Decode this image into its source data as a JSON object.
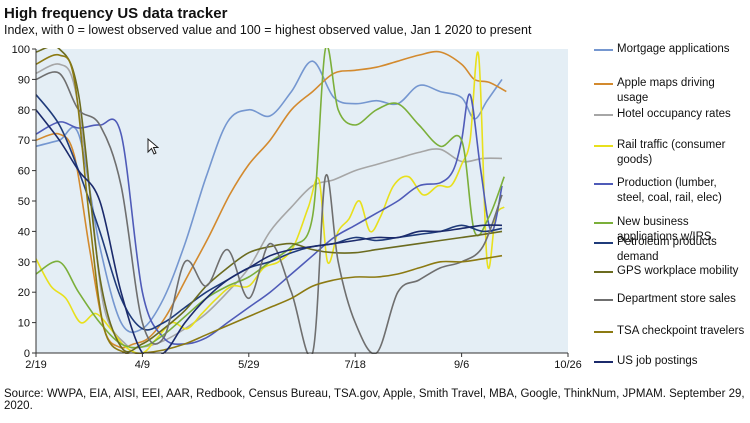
{
  "title": "High frequency US data tracker",
  "subtitle": "Index, with 0 = lowest observed value and 100 = highest observed value, Jan 1 2020 to present",
  "source": "Source:  WWPA, EIA, AISI, EEI, AAR, Redbook, Census Bureau, TSA.gov, Apple, Smith Travel, MBA, Google, ThinkNum,  JPMAM. September 29, 2020.",
  "chart_data": {
    "type": "line",
    "title": "High frequency US data tracker",
    "xlabel": "",
    "ylabel": "",
    "xlim": [
      "2020-02-19",
      "2020-10-26"
    ],
    "ylim": [
      0,
      100
    ],
    "x_ticks": [
      "2/19",
      "4/9",
      "5/29",
      "7/18",
      "9/6",
      "10/26"
    ],
    "x_tick_dates": [
      "2020-02-19",
      "2020-04-09",
      "2020-05-29",
      "2020-07-18",
      "2020-09-06",
      "2020-10-26"
    ],
    "y_ticks": [
      0,
      10,
      20,
      30,
      40,
      50,
      60,
      70,
      80,
      90,
      100
    ],
    "grid": false,
    "legend_position": "right",
    "plot_background": "#E4EEF5",
    "series": [
      {
        "name": "Mortgage applications",
        "color": "#7597D0",
        "x": [
          "2020-02-19",
          "2020-03-01",
          "2020-03-10",
          "2020-03-20",
          "2020-03-30",
          "2020-04-09",
          "2020-04-19",
          "2020-04-29",
          "2020-05-09",
          "2020-05-19",
          "2020-05-29",
          "2020-06-08",
          "2020-06-18",
          "2020-06-28",
          "2020-07-08",
          "2020-07-18",
          "2020-07-28",
          "2020-08-07",
          "2020-08-17",
          "2020-08-27",
          "2020-09-06",
          "2020-09-12",
          "2020-09-18",
          "2020-09-25"
        ],
        "y": [
          68,
          70,
          72,
          35,
          10,
          8,
          18,
          36,
          58,
          76,
          80,
          78,
          86,
          96,
          84,
          82,
          83,
          82,
          88,
          86,
          84,
          77,
          83,
          90
        ]
      },
      {
        "name": "Apple maps driving usage",
        "color": "#D38A2E",
        "x": [
          "2020-02-19",
          "2020-03-01",
          "2020-03-08",
          "2020-03-15",
          "2020-03-22",
          "2020-03-29",
          "2020-04-05",
          "2020-04-12",
          "2020-04-20",
          "2020-04-30",
          "2020-05-10",
          "2020-05-20",
          "2020-05-29",
          "2020-06-08",
          "2020-06-18",
          "2020-06-28",
          "2020-07-08",
          "2020-07-18",
          "2020-07-28",
          "2020-08-07",
          "2020-08-17",
          "2020-08-27",
          "2020-09-06",
          "2020-09-12",
          "2020-09-19",
          "2020-09-27"
        ],
        "y": [
          70,
          72,
          65,
          35,
          8,
          2,
          3,
          5,
          12,
          25,
          38,
          52,
          62,
          70,
          80,
          86,
          92,
          93,
          94,
          96,
          98,
          99,
          95,
          90,
          89,
          86
        ]
      },
      {
        "name": "Hotel occupancy rates",
        "color": "#A6A6A6",
        "x": [
          "2020-02-19",
          "2020-03-01",
          "2020-03-08",
          "2020-03-15",
          "2020-03-22",
          "2020-04-01",
          "2020-04-09",
          "2020-04-19",
          "2020-04-29",
          "2020-05-09",
          "2020-05-19",
          "2020-05-29",
          "2020-06-08",
          "2020-06-18",
          "2020-06-28",
          "2020-07-08",
          "2020-07-18",
          "2020-07-28",
          "2020-08-07",
          "2020-08-17",
          "2020-08-27",
          "2020-09-06",
          "2020-09-16",
          "2020-09-25"
        ],
        "y": [
          92,
          95,
          88,
          55,
          15,
          3,
          2,
          4,
          8,
          13,
          20,
          28,
          40,
          48,
          55,
          57,
          60,
          62,
          64,
          66,
          67,
          63,
          64,
          64
        ]
      },
      {
        "name": "Rail traffic (consumer goods)",
        "color": "#E8E01C",
        "x": [
          "2020-02-19",
          "2020-02-26",
          "2020-03-04",
          "2020-03-11",
          "2020-03-18",
          "2020-03-25",
          "2020-04-01",
          "2020-04-09",
          "2020-04-16",
          "2020-04-23",
          "2020-04-30",
          "2020-05-07",
          "2020-05-14",
          "2020-05-21",
          "2020-05-29",
          "2020-06-05",
          "2020-06-12",
          "2020-06-19",
          "2020-06-26",
          "2020-07-01",
          "2020-07-05",
          "2020-07-10",
          "2020-07-15",
          "2020-07-20",
          "2020-07-25",
          "2020-07-30",
          "2020-08-05",
          "2020-08-12",
          "2020-08-19",
          "2020-08-26",
          "2020-09-01",
          "2020-09-06",
          "2020-09-10",
          "2020-09-14",
          "2020-09-18",
          "2020-09-22",
          "2020-09-26"
        ],
        "y": [
          31,
          22,
          18,
          10,
          13,
          8,
          2,
          0,
          5,
          10,
          8,
          13,
          18,
          22,
          22,
          28,
          30,
          35,
          48,
          57,
          30,
          40,
          44,
          50,
          40,
          45,
          55,
          58,
          52,
          55,
          55,
          62,
          70,
          98,
          30,
          45,
          48
        ]
      },
      {
        "name": "Production (lumber, steel, coal, rail, elec)",
        "color": "#4F5BB8",
        "x": [
          "2020-02-19",
          "2020-03-01",
          "2020-03-10",
          "2020-03-20",
          "2020-03-30",
          "2020-04-09",
          "2020-04-19",
          "2020-04-29",
          "2020-05-09",
          "2020-05-19",
          "2020-05-29",
          "2020-06-08",
          "2020-06-18",
          "2020-06-28",
          "2020-07-08",
          "2020-07-18",
          "2020-07-28",
          "2020-08-07",
          "2020-08-17",
          "2020-08-27",
          "2020-09-02",
          "2020-09-06",
          "2020-09-10",
          "2020-09-15",
          "2020-09-20",
          "2020-09-25"
        ],
        "y": [
          72,
          76,
          74,
          75,
          72,
          20,
          5,
          3,
          5,
          10,
          15,
          20,
          26,
          32,
          38,
          42,
          46,
          50,
          55,
          56,
          60,
          70,
          85,
          60,
          40,
          55
        ]
      },
      {
        "name": "New business applications w/IRS",
        "color": "#7BAF3A",
        "x": [
          "2020-02-19",
          "2020-03-01",
          "2020-03-10",
          "2020-03-20",
          "2020-03-30",
          "2020-04-09",
          "2020-04-19",
          "2020-04-29",
          "2020-05-09",
          "2020-05-19",
          "2020-05-29",
          "2020-06-08",
          "2020-06-18",
          "2020-06-28",
          "2020-07-04",
          "2020-07-10",
          "2020-07-18",
          "2020-07-28",
          "2020-08-07",
          "2020-08-17",
          "2020-08-27",
          "2020-09-06",
          "2020-09-12",
          "2020-09-19",
          "2020-09-26"
        ],
        "y": [
          26,
          30,
          20,
          10,
          3,
          2,
          6,
          12,
          18,
          22,
          25,
          30,
          35,
          45,
          100,
          80,
          75,
          80,
          82,
          75,
          68,
          70,
          40,
          45,
          58
        ]
      },
      {
        "name": "Petroleum products demand",
        "color": "#1F3B7A",
        "x": [
          "2020-02-19",
          "2020-03-01",
          "2020-03-10",
          "2020-03-20",
          "2020-03-30",
          "2020-04-09",
          "2020-04-19",
          "2020-04-29",
          "2020-05-09",
          "2020-05-19",
          "2020-05-29",
          "2020-06-08",
          "2020-06-18",
          "2020-06-28",
          "2020-07-08",
          "2020-07-18",
          "2020-07-28",
          "2020-08-07",
          "2020-08-17",
          "2020-08-27",
          "2020-09-06",
          "2020-09-16",
          "2020-09-25"
        ],
        "y": [
          85,
          75,
          60,
          40,
          18,
          8,
          10,
          15,
          20,
          24,
          28,
          30,
          33,
          35,
          36,
          38,
          37,
          38,
          39,
          40,
          42,
          40,
          41
        ]
      },
      {
        "name": "GPS workplace mobility",
        "color": "#6B6B1F",
        "x": [
          "2020-02-19",
          "2020-03-01",
          "2020-03-10",
          "2020-03-20",
          "2020-03-30",
          "2020-04-09",
          "2020-04-19",
          "2020-04-29",
          "2020-05-09",
          "2020-05-19",
          "2020-05-29",
          "2020-06-08",
          "2020-06-18",
          "2020-06-28",
          "2020-07-08",
          "2020-07-18",
          "2020-07-28",
          "2020-08-07",
          "2020-08-17",
          "2020-08-27",
          "2020-09-06",
          "2020-09-16",
          "2020-09-25"
        ],
        "y": [
          99,
          100,
          85,
          25,
          2,
          3,
          8,
          14,
          22,
          28,
          33,
          35,
          36,
          34,
          33,
          33,
          34,
          35,
          36,
          37,
          38,
          39,
          40
        ]
      },
      {
        "name": "Department store sales",
        "color": "#6F6F6F",
        "x": [
          "2020-02-19",
          "2020-03-01",
          "2020-03-10",
          "2020-03-20",
          "2020-03-30",
          "2020-04-09",
          "2020-04-19",
          "2020-04-29",
          "2020-05-09",
          "2020-05-19",
          "2020-05-29",
          "2020-06-08",
          "2020-06-18",
          "2020-06-28",
          "2020-07-04",
          "2020-07-10",
          "2020-07-18",
          "2020-07-28",
          "2020-08-07",
          "2020-08-17",
          "2020-08-27",
          "2020-09-06",
          "2020-09-16",
          "2020-09-25"
        ],
        "y": [
          90,
          92,
          80,
          75,
          55,
          10,
          5,
          30,
          22,
          34,
          18,
          36,
          20,
          0,
          58,
          30,
          10,
          0,
          20,
          24,
          28,
          30,
          35,
          52
        ]
      },
      {
        "name": "TSA checkpoint travelers",
        "color": "#8C7A12",
        "x": [
          "2020-02-19",
          "2020-03-01",
          "2020-03-08",
          "2020-03-15",
          "2020-03-22",
          "2020-04-01",
          "2020-04-09",
          "2020-04-19",
          "2020-04-29",
          "2020-05-09",
          "2020-05-19",
          "2020-05-29",
          "2020-06-08",
          "2020-06-18",
          "2020-06-28",
          "2020-07-08",
          "2020-07-18",
          "2020-07-28",
          "2020-08-07",
          "2020-08-17",
          "2020-08-27",
          "2020-09-06",
          "2020-09-16",
          "2020-09-25"
        ],
        "y": [
          95,
          98,
          90,
          45,
          8,
          0,
          0,
          1,
          3,
          6,
          9,
          12,
          15,
          18,
          22,
          24,
          25,
          25,
          26,
          28,
          30,
          30,
          31,
          32
        ]
      },
      {
        "name": "US job postings",
        "color": "#1B2A6B",
        "x": [
          "2020-02-19",
          "2020-03-01",
          "2020-03-10",
          "2020-03-20",
          "2020-03-30",
          "2020-04-09",
          "2020-04-19",
          "2020-04-29",
          "2020-05-09",
          "2020-05-19",
          "2020-05-29",
          "2020-06-08",
          "2020-06-18",
          "2020-06-28",
          "2020-07-08",
          "2020-07-18",
          "2020-07-28",
          "2020-08-07",
          "2020-08-17",
          "2020-08-27",
          "2020-09-06",
          "2020-09-16",
          "2020-09-25"
        ],
        "y": [
          80,
          70,
          60,
          50,
          20,
          0,
          0,
          10,
          18,
          24,
          28,
          32,
          34,
          35,
          36,
          37,
          38,
          38,
          40,
          40,
          41,
          42,
          42
        ]
      }
    ]
  }
}
